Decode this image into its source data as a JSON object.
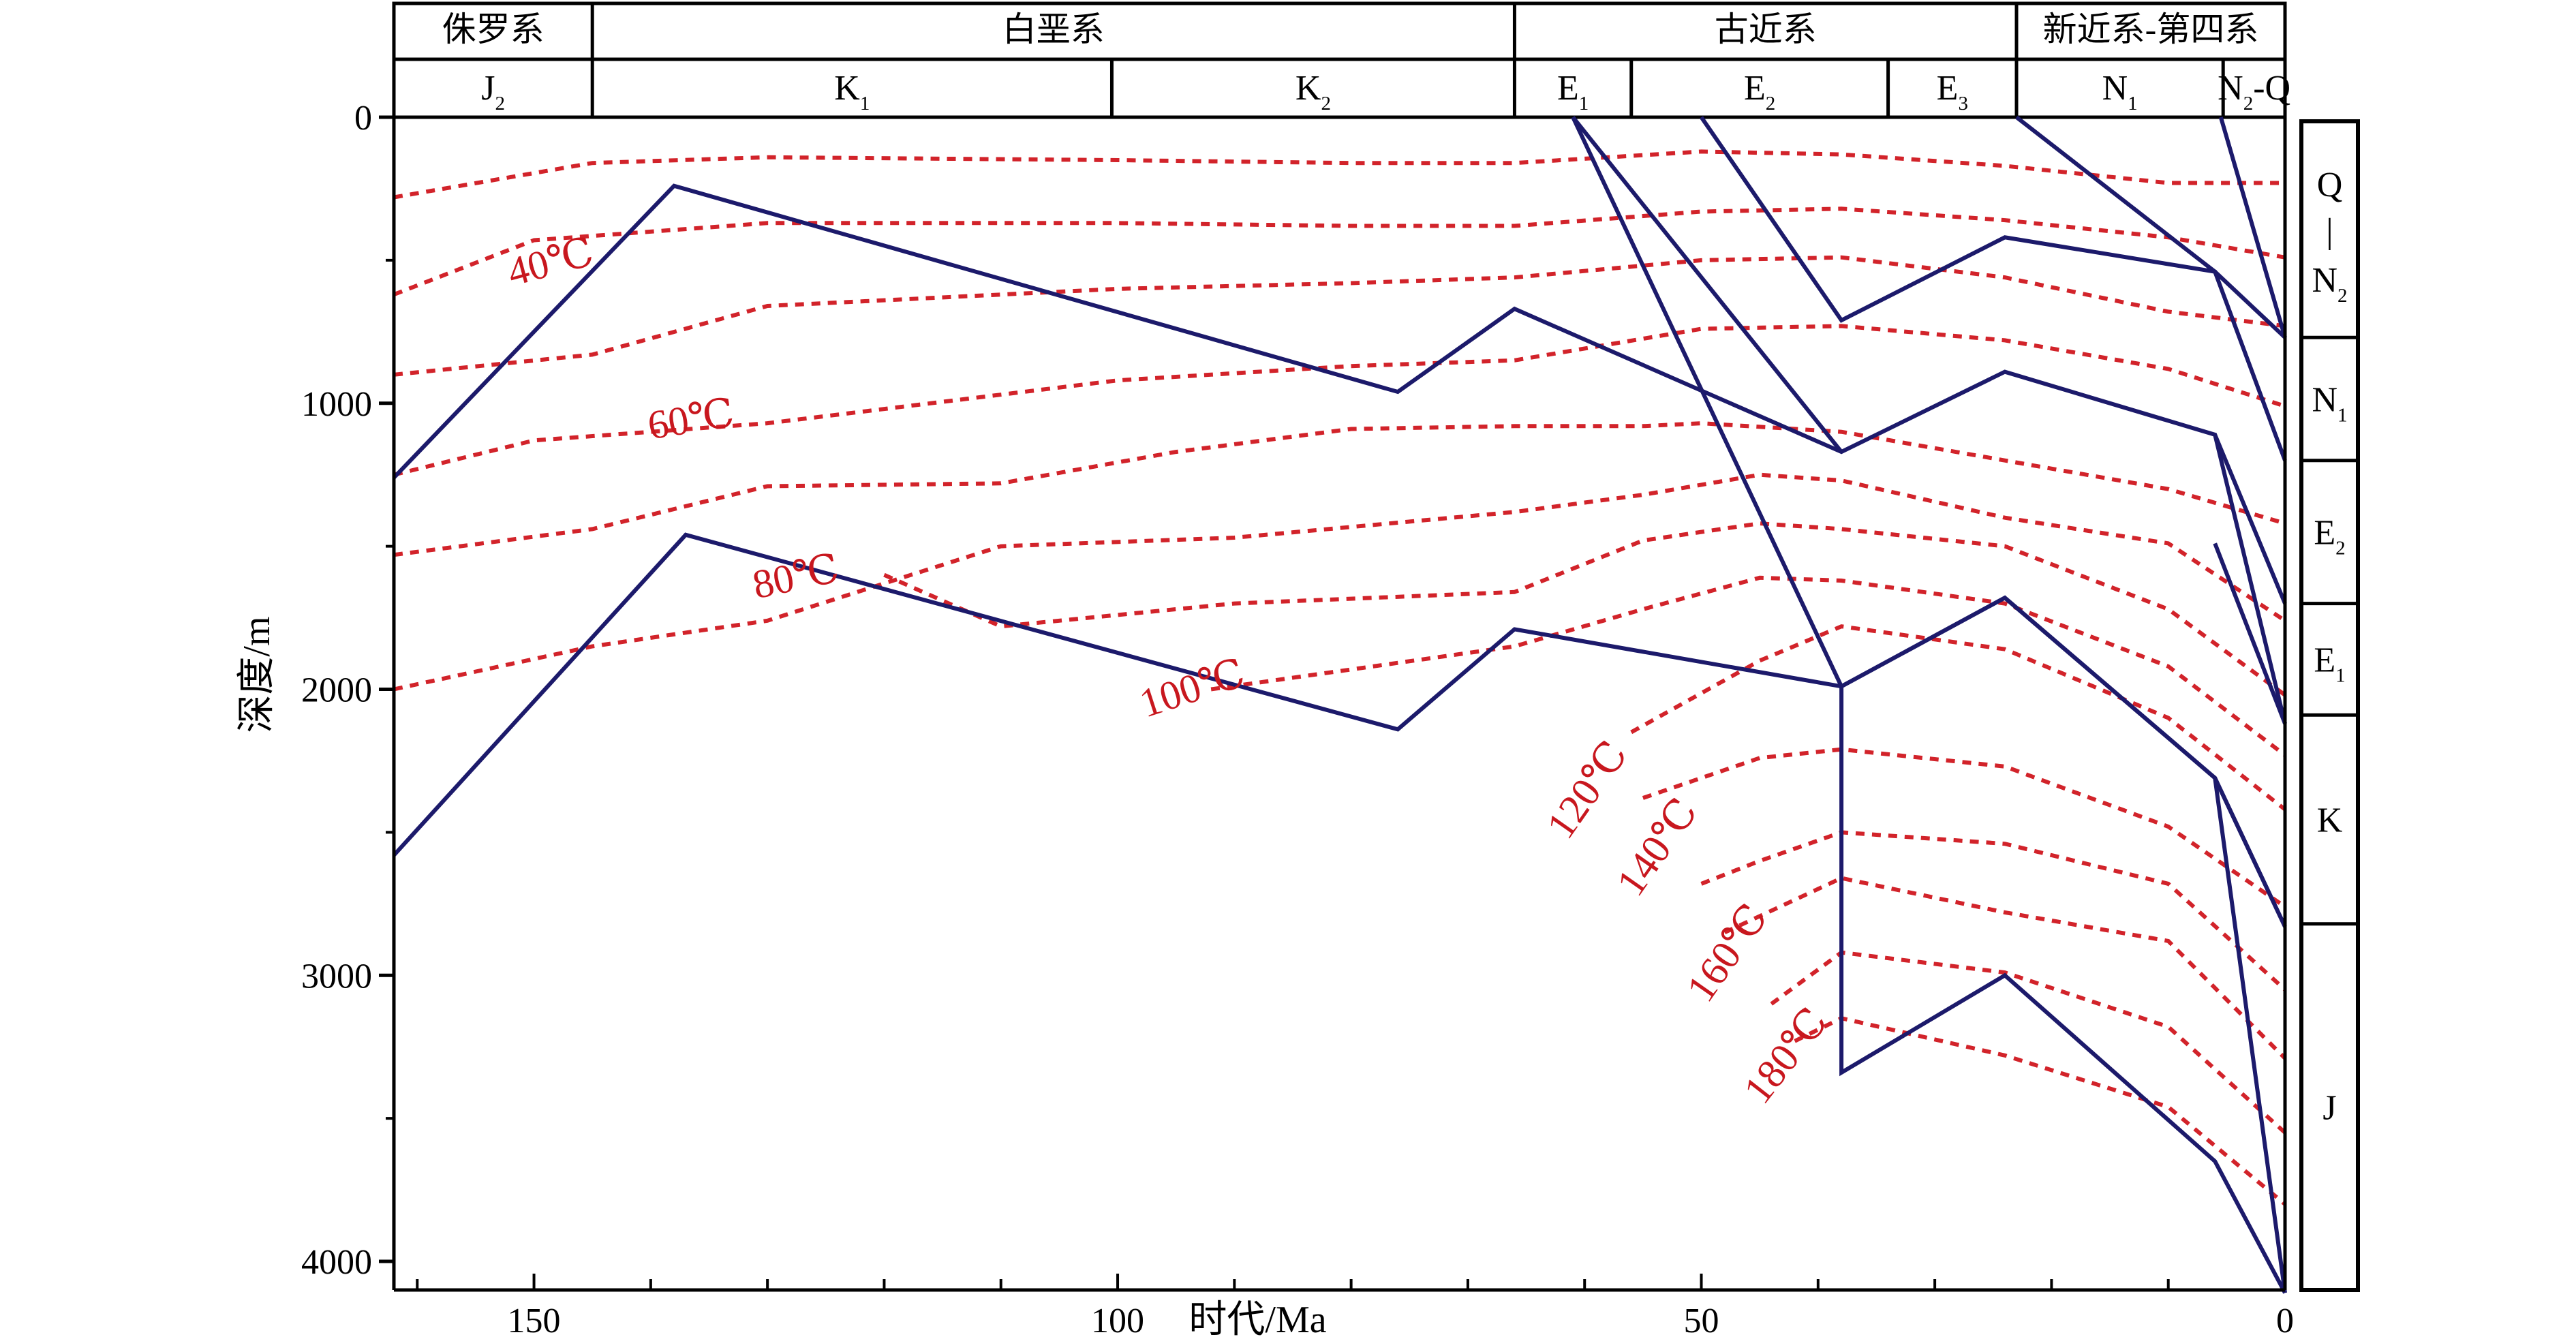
{
  "chart_data": {
    "type": "line",
    "title": "",
    "xlabel": "时代/Ma",
    "ylabel": "深度/m",
    "xlim": [
      162,
      0
    ],
    "ylim": [
      0,
      4100
    ],
    "x_ticks": [
      "150",
      "100",
      "50",
      "0"
    ],
    "y_ticks": [
      "0",
      "1000",
      "2000",
      "3000",
      "4000"
    ],
    "grid": false,
    "legend": "none",
    "colors": {
      "burial": "#1c1a6b",
      "isotherm": "#d2232a",
      "frame": "#000000"
    },
    "period_header": [
      {
        "label": "侏罗系",
        "from": 162,
        "to": 145
      },
      {
        "label": "白垩系",
        "from": 145,
        "to": 66
      },
      {
        "label": "古近系",
        "from": 66,
        "to": 23
      },
      {
        "label": "新近系-第四系",
        "from": 23,
        "to": 0
      }
    ],
    "epoch_header": [
      {
        "label": "J",
        "sub": "2",
        "from": 162,
        "to": 145
      },
      {
        "label": "K",
        "sub": "1",
        "from": 145,
        "to": 100.5
      },
      {
        "label": "K",
        "sub": "2",
        "from": 100.5,
        "to": 66
      },
      {
        "label": "E",
        "sub": "1",
        "from": 66,
        "to": 56
      },
      {
        "label": "E",
        "sub": "2",
        "from": 56,
        "to": 34
      },
      {
        "label": "E",
        "sub": "3",
        "from": 34,
        "to": 23
      },
      {
        "label": "N",
        "sub": "1",
        "from": 23,
        "to": 5.3
      },
      {
        "label": "N",
        "sub": "2",
        "tail": "-Q",
        "from": 5.3,
        "to": 0
      }
    ],
    "strata_column": [
      {
        "label": "Q",
        "mid": "|",
        "bottom": "N",
        "sub": "2",
        "from": 0,
        "to": 770
      },
      {
        "label": "N",
        "sub": "1",
        "from": 770,
        "to": 1200
      },
      {
        "label": "E",
        "sub": "2",
        "from": 1200,
        "to": 1700
      },
      {
        "label": "E",
        "sub": "1",
        "from": 1700,
        "to": 2090
      },
      {
        "label": "K",
        "sub": "",
        "from": 2090,
        "to": 2820
      },
      {
        "label": "J",
        "sub": "",
        "from": 2820,
        "to": 4100
      }
    ],
    "burial_series": [
      {
        "points": [
          [
            162,
            1260
          ],
          [
            138,
            240
          ],
          [
            76,
            960
          ],
          [
            66,
            670
          ],
          [
            38,
            1170
          ],
          [
            24,
            890
          ],
          [
            6,
            1110
          ],
          [
            0,
            2120
          ]
        ]
      },
      {
        "points": [
          [
            162,
            2580
          ],
          [
            137,
            1460
          ],
          [
            76,
            2140
          ],
          [
            66,
            1790
          ],
          [
            38,
            1990
          ],
          [
            24,
            1680
          ],
          [
            6,
            2310
          ],
          [
            0,
            4110
          ]
        ]
      },
      {
        "points": [
          [
            61,
            0
          ],
          [
            38,
            1170
          ]
        ]
      },
      {
        "points": [
          [
            50,
            0
          ],
          [
            38,
            710
          ],
          [
            24,
            420
          ],
          [
            6,
            540
          ],
          [
            0,
            1200
          ]
        ]
      },
      {
        "points": [
          [
            38,
            1990
          ],
          [
            24,
            1680
          ],
          [
            6,
            2310
          ],
          [
            0,
            2830
          ]
        ]
      },
      {
        "points": [
          [
            61,
            0
          ],
          [
            38,
            1990
          ],
          [
            38,
            3340
          ],
          [
            24,
            3000
          ],
          [
            6,
            3650
          ],
          [
            0,
            4110
          ]
        ]
      },
      {
        "points": [
          [
            23,
            0
          ],
          [
            6,
            540
          ],
          [
            0,
            770
          ]
        ]
      },
      {
        "points": [
          [
            5.5,
            0
          ],
          [
            0,
            770
          ]
        ]
      },
      {
        "points": [
          [
            6,
            1110
          ],
          [
            0,
            1700
          ]
        ]
      },
      {
        "points": [
          [
            6,
            1490
          ],
          [
            0,
            2120
          ]
        ]
      },
      {
        "points": [
          [
            6,
            2310
          ],
          [
            0,
            2830
          ]
        ]
      }
    ],
    "isotherms": [
      {
        "points": [
          [
            162,
            280
          ],
          [
            145,
            160
          ],
          [
            130,
            140
          ],
          [
            100,
            150
          ],
          [
            80,
            160
          ],
          [
            66,
            160
          ],
          [
            50,
            120
          ],
          [
            38,
            130
          ],
          [
            24,
            170
          ],
          [
            10,
            230
          ],
          [
            0,
            230
          ]
        ]
      },
      {
        "points": [
          [
            162,
            620
          ],
          [
            150,
            430
          ],
          [
            130,
            370
          ],
          [
            100,
            370
          ],
          [
            80,
            380
          ],
          [
            66,
            380
          ],
          [
            50,
            330
          ],
          [
            38,
            320
          ],
          [
            24,
            360
          ],
          [
            10,
            420
          ],
          [
            0,
            490
          ]
        ]
      },
      {
        "points": [
          [
            162,
            900
          ],
          [
            145,
            830
          ],
          [
            130,
            660
          ],
          [
            100,
            600
          ],
          [
            80,
            580
          ],
          [
            66,
            560
          ],
          [
            50,
            500
          ],
          [
            38,
            490
          ],
          [
            24,
            560
          ],
          [
            10,
            680
          ],
          [
            0,
            730
          ]
        ]
      },
      {
        "points": [
          [
            162,
            1250
          ],
          [
            150,
            1130
          ],
          [
            130,
            1070
          ],
          [
            100,
            920
          ],
          [
            80,
            870
          ],
          [
            66,
            850
          ],
          [
            50,
            740
          ],
          [
            38,
            730
          ],
          [
            24,
            780
          ],
          [
            10,
            880
          ],
          [
            0,
            1010
          ]
        ]
      },
      {
        "points": [
          [
            162,
            1530
          ],
          [
            145,
            1440
          ],
          [
            130,
            1290
          ],
          [
            110,
            1280
          ],
          [
            95,
            1170
          ],
          [
            80,
            1090
          ],
          [
            66,
            1080
          ],
          [
            55,
            1080
          ],
          [
            50,
            1070
          ],
          [
            38,
            1100
          ],
          [
            24,
            1200
          ],
          [
            10,
            1300
          ],
          [
            0,
            1420
          ]
        ]
      },
      {
        "points": [
          [
            162,
            2000
          ],
          [
            145,
            1850
          ],
          [
            130,
            1760
          ],
          [
            110,
            1500
          ],
          [
            90,
            1470
          ],
          [
            66,
            1380
          ],
          [
            55,
            1320
          ],
          [
            45,
            1250
          ],
          [
            38,
            1270
          ],
          [
            24,
            1400
          ],
          [
            10,
            1490
          ],
          [
            0,
            1760
          ]
        ]
      },
      {
        "points": [
          [
            120,
            1600
          ],
          [
            110,
            1780
          ],
          [
            90,
            1700
          ],
          [
            66,
            1660
          ],
          [
            55,
            1480
          ],
          [
            45,
            1420
          ],
          [
            38,
            1440
          ],
          [
            24,
            1500
          ],
          [
            10,
            1720
          ],
          [
            0,
            2020
          ]
        ]
      },
      {
        "points": [
          [
            92,
            2000
          ],
          [
            66,
            1850
          ],
          [
            55,
            1720
          ],
          [
            45,
            1610
          ],
          [
            38,
            1620
          ],
          [
            24,
            1700
          ],
          [
            10,
            1920
          ],
          [
            0,
            2230
          ]
        ]
      },
      {
        "points": [
          [
            56,
            2150
          ],
          [
            45,
            1900
          ],
          [
            38,
            1780
          ],
          [
            24,
            1860
          ],
          [
            10,
            2100
          ],
          [
            0,
            2420
          ]
        ]
      },
      {
        "points": [
          [
            55,
            2380
          ],
          [
            45,
            2240
          ],
          [
            38,
            2210
          ],
          [
            24,
            2270
          ],
          [
            10,
            2480
          ],
          [
            0,
            2760
          ]
        ]
      },
      {
        "points": [
          [
            50,
            2680
          ],
          [
            45,
            2600
          ],
          [
            38,
            2500
          ],
          [
            24,
            2540
          ],
          [
            10,
            2680
          ],
          [
            0,
            3050
          ]
        ]
      },
      {
        "points": [
          [
            48,
            2850
          ],
          [
            38,
            2660
          ],
          [
            24,
            2780
          ],
          [
            10,
            2880
          ],
          [
            0,
            3290
          ]
        ]
      },
      {
        "points": [
          [
            44,
            3100
          ],
          [
            38,
            2920
          ],
          [
            24,
            2990
          ],
          [
            10,
            3180
          ],
          [
            0,
            3550
          ]
        ]
      },
      {
        "points": [
          [
            42,
            3230
          ],
          [
            38,
            3150
          ],
          [
            24,
            3280
          ],
          [
            10,
            3460
          ],
          [
            0,
            3800
          ]
        ]
      }
    ],
    "isotherm_labels": [
      {
        "text": "40℃",
        "x": 148.5,
        "y": 520,
        "angle": -15
      },
      {
        "text": "60℃",
        "x": 136.5,
        "y": 1070,
        "angle": -9
      },
      {
        "text": "80℃",
        "x": 127.5,
        "y": 1620,
        "angle": -12
      },
      {
        "text": "100℃",
        "x": 93.5,
        "y": 2010,
        "angle": -18
      },
      {
        "text": "120℃",
        "x": 59.5,
        "y": 2360,
        "angle": -55
      },
      {
        "text": "140℃",
        "x": 53.5,
        "y": 2560,
        "angle": -55
      },
      {
        "text": "160℃",
        "x": 47.5,
        "y": 2930,
        "angle": -55
      },
      {
        "text": "180℃",
        "x": 42.5,
        "y": 3290,
        "angle": -52
      }
    ]
  }
}
